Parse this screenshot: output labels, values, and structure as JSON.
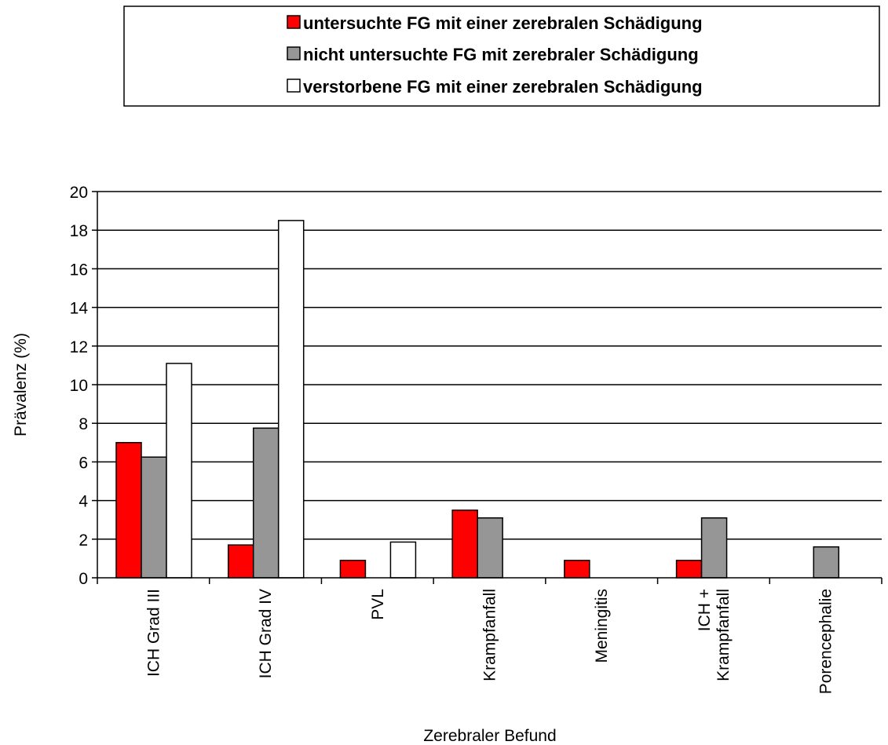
{
  "chart_data": {
    "type": "bar",
    "categories": [
      [
        "ICH Grad III"
      ],
      [
        "ICH Grad IV"
      ],
      [
        "PVL"
      ],
      [
        "Krampfanfall"
      ],
      [
        "Meningitis"
      ],
      [
        "ICH +",
        "Krampfanfall"
      ],
      [
        "Porencephalie"
      ]
    ],
    "series": [
      {
        "name": "untersuchte FG mit einer zerebralen Schädigung",
        "color": "#ff0000",
        "values": [
          7.0,
          1.7,
          0.9,
          3.5,
          0.9,
          0.9,
          null
        ]
      },
      {
        "name": "nicht untersuchte FG mit zerebraler Schädigung",
        "color": "#969696",
        "values": [
          6.25,
          7.75,
          null,
          3.1,
          null,
          3.1,
          1.6
        ]
      },
      {
        "name": "verstorbene FG mit einer zerebralen Schädigung",
        "color": "#ffffff",
        "values": [
          11.1,
          18.5,
          1.85,
          null,
          null,
          null,
          null
        ]
      }
    ],
    "xlabel": "Zerebraler Befund",
    "ylabel": "Prävalenz (%)",
    "ylim": [
      0,
      20
    ],
    "yticks": [
      "0",
      "2",
      "4",
      "6",
      "8",
      "10",
      "12",
      "14",
      "16",
      "18",
      "20"
    ],
    "grid": true,
    "legend_position": "top"
  }
}
